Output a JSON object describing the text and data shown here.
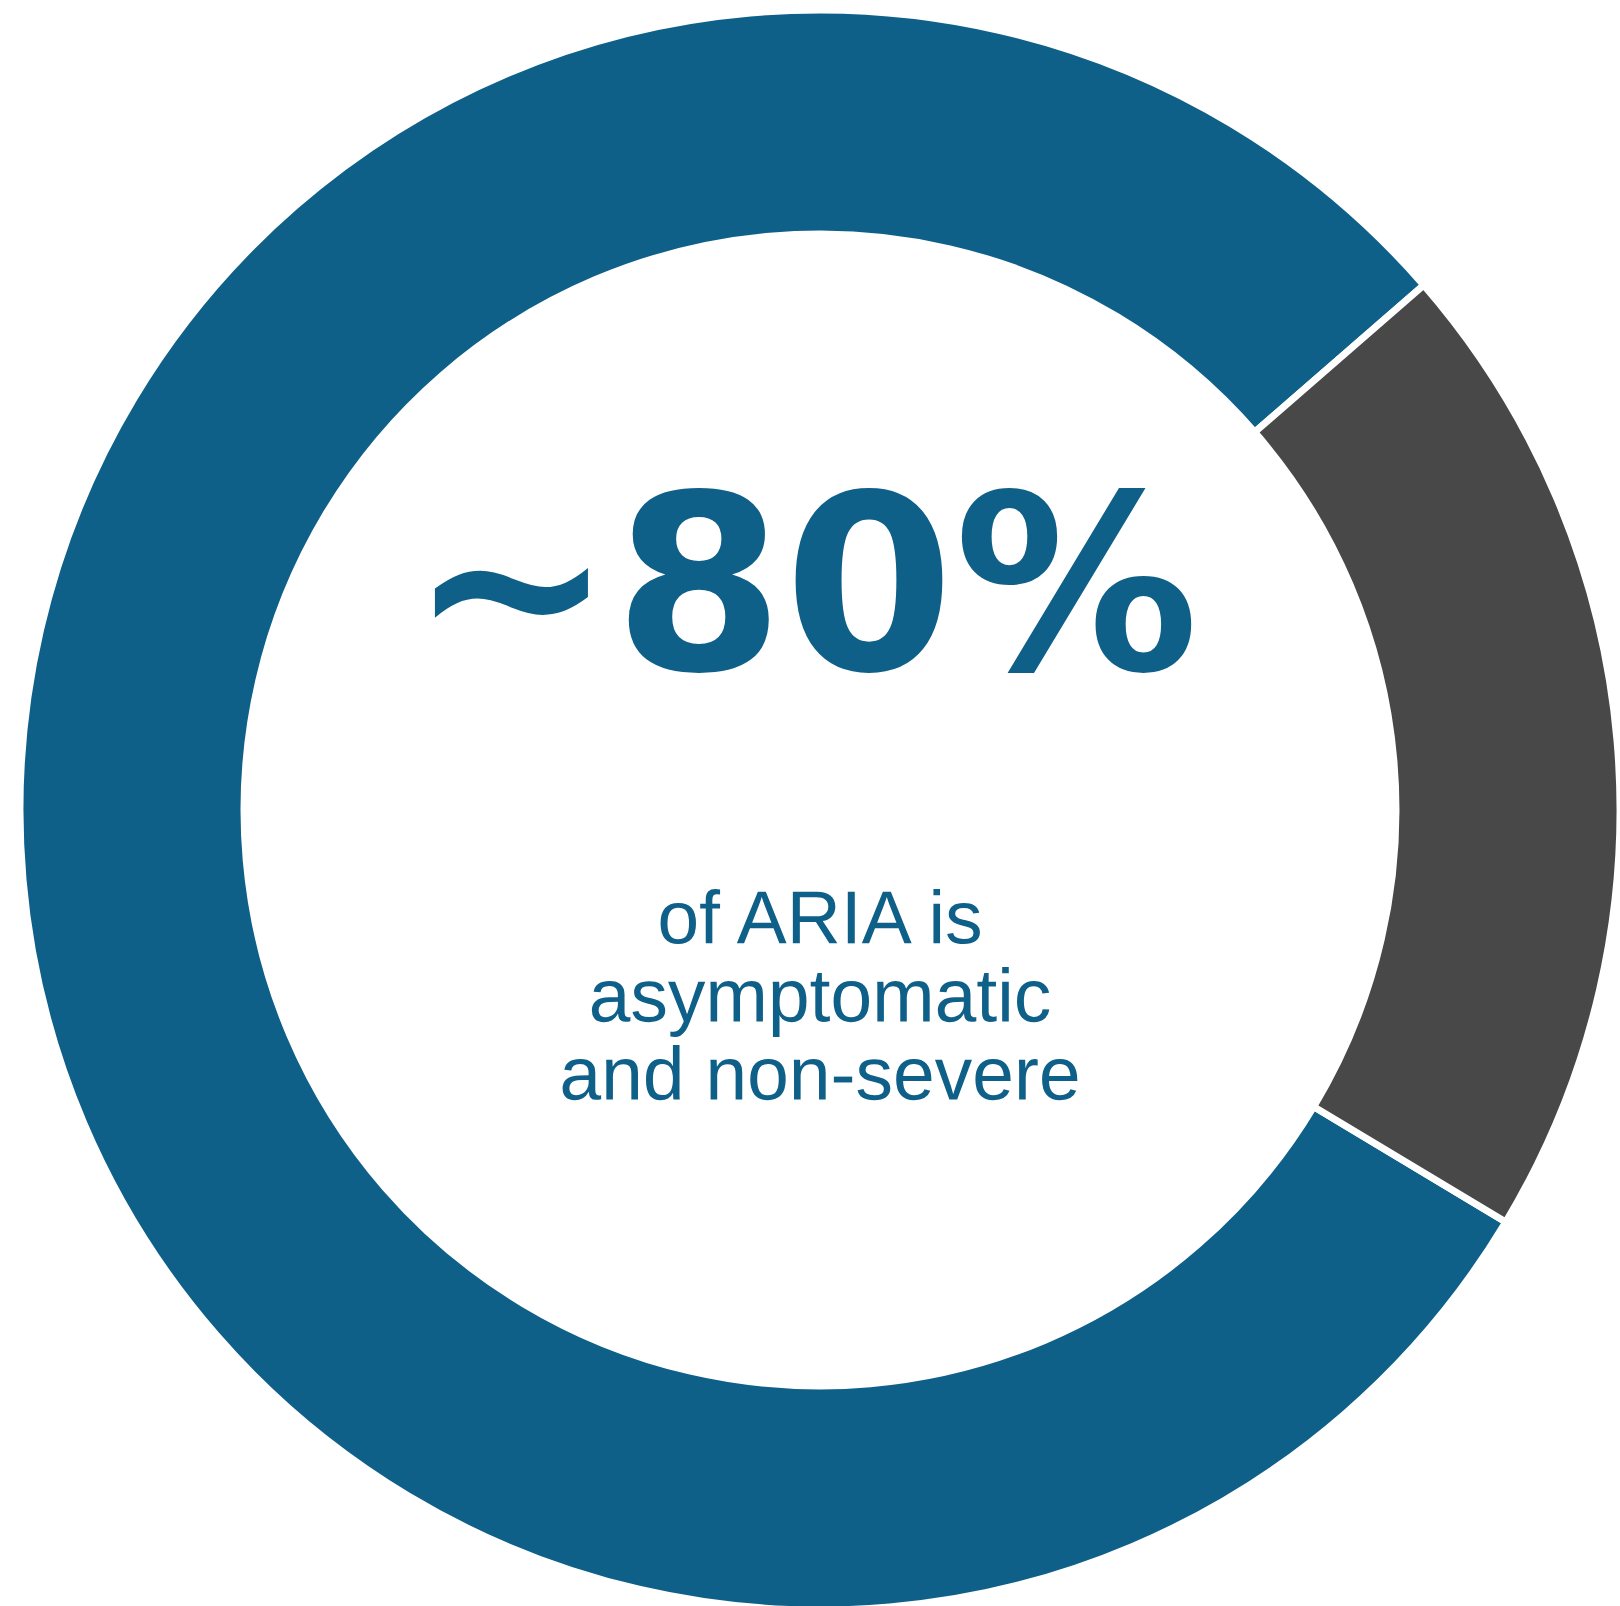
{
  "chart_data": {
    "type": "donut",
    "categories": [
      null,
      null
    ],
    "values": [
      80,
      20
    ],
    "colors": [
      "#0f6089",
      "#484848"
    ],
    "annotations": [
      "~80%",
      "of ARIA is\nasymptomatic\nand non-severe"
    ]
  }
}
